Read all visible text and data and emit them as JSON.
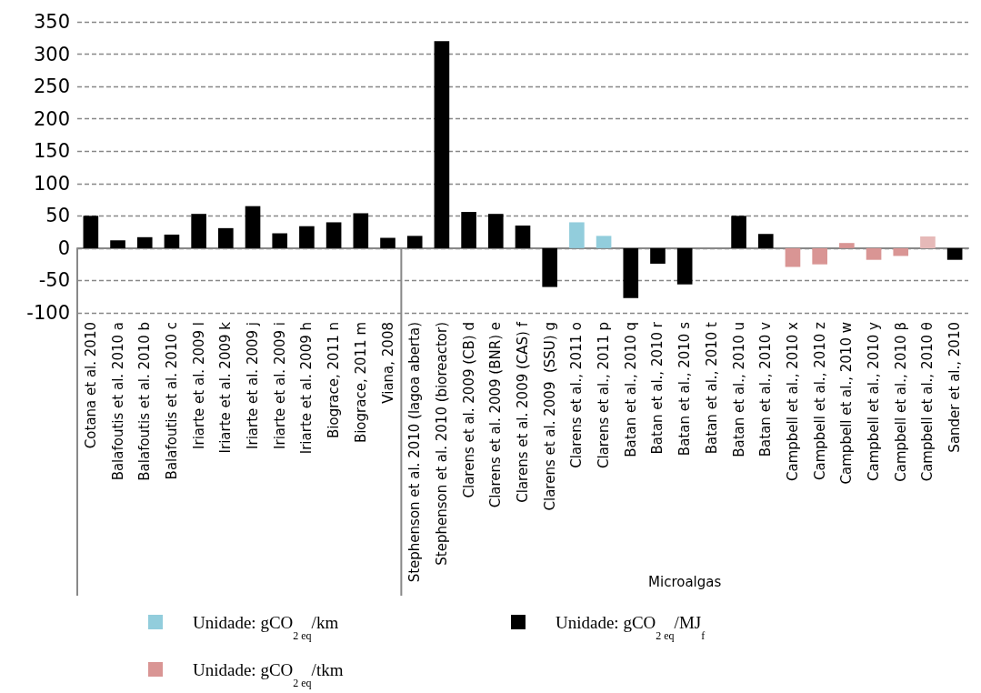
{
  "chart_data": {
    "type": "bar",
    "xlabel": "Microalgas",
    "categories": [
      "Cotana et al. 2010",
      "Balafoutis et al. 2010 a",
      "Balafoutis et al. 2010 b",
      "Balafoutis et al. 2010 c",
      "Iriarte et al. 2009 l",
      "Iriarte et al. 2009 k",
      "Iriarte et al. 2009 j",
      "Iriarte et al. 2009 i",
      "Iriarte et al. 2009 h",
      "Biograce, 2011 n",
      "Biograce, 2011 m",
      "Viana, 2008",
      "Stephenson et al. 2010 (lagoa aberta)",
      "Stephenson et al. 2010 (bioreactor)",
      "Clarens et al. 2009 (CB) d",
      "Clarens et al. 2009 (BNR) e",
      "Clarens et al. 2009 (CAS) f",
      "Clarens et al. 2009  (SSU) g",
      "Clarens et al., 2011 o",
      "Clarens et al., 2011 p",
      "Batan et al., 2010 q",
      "Batan et al., 2010 r",
      "Batan et al., 2010 s",
      "Batan et al., 2010 t",
      "Batan et al., 2010 u",
      "Batan et al., 2010 v",
      "Campbell et al., 2010 x",
      "Campbell et al., 2010 z",
      "Campbell et al., 2010 w",
      "Campbell et al., 2010 y",
      "Campbell et al., 2010 β",
      "Campbell et al., 2010 θ",
      "Sander et al., 2010"
    ],
    "series": [
      {
        "name": "Unidade: gCO$_{2 eq}$/km",
        "color": "#92cddc",
        "values": [
          null,
          null,
          null,
          null,
          null,
          null,
          null,
          null,
          null,
          null,
          null,
          null,
          null,
          null,
          null,
          null,
          null,
          null,
          40,
          19,
          null,
          null,
          null,
          null,
          null,
          null,
          null,
          null,
          null,
          null,
          null,
          null,
          null
        ]
      },
      {
        "name": "Unidade: gCO$_{2 eq}$/MJ$_{f}$",
        "color": "#000000",
        "values": [
          50,
          12,
          17,
          21,
          53,
          31,
          65,
          23,
          34,
          40,
          54,
          16,
          19,
          320,
          56,
          53,
          35,
          -60,
          null,
          null,
          -77,
          -24,
          -56,
          0,
          50,
          22,
          null,
          null,
          null,
          null,
          null,
          null,
          -18
        ]
      },
      {
        "name": "Unidade: gCO$_{2 eq}$/tkm",
        "color": "#d99594",
        "colors": [
          null,
          null,
          null,
          null,
          null,
          null,
          null,
          null,
          null,
          null,
          null,
          null,
          null,
          null,
          null,
          null,
          null,
          null,
          null,
          null,
          null,
          null,
          null,
          null,
          null,
          null,
          "#d99594",
          "#d99594",
          "#d99594",
          "#d99594",
          "#d99594",
          "#e6b9b8",
          null
        ],
        "values": [
          null,
          null,
          null,
          null,
          null,
          null,
          null,
          null,
          null,
          null,
          null,
          null,
          null,
          null,
          null,
          null,
          null,
          null,
          null,
          null,
          null,
          null,
          null,
          null,
          null,
          null,
          -29,
          -25,
          8,
          -18,
          -12,
          18,
          null
        ]
      }
    ],
    "ylim": [
      -100,
      350
    ],
    "yticks": [
      -100,
      -50,
      0,
      50,
      100,
      150,
      200,
      250,
      300,
      350
    ],
    "grid": "y",
    "legend": "bottom"
  }
}
